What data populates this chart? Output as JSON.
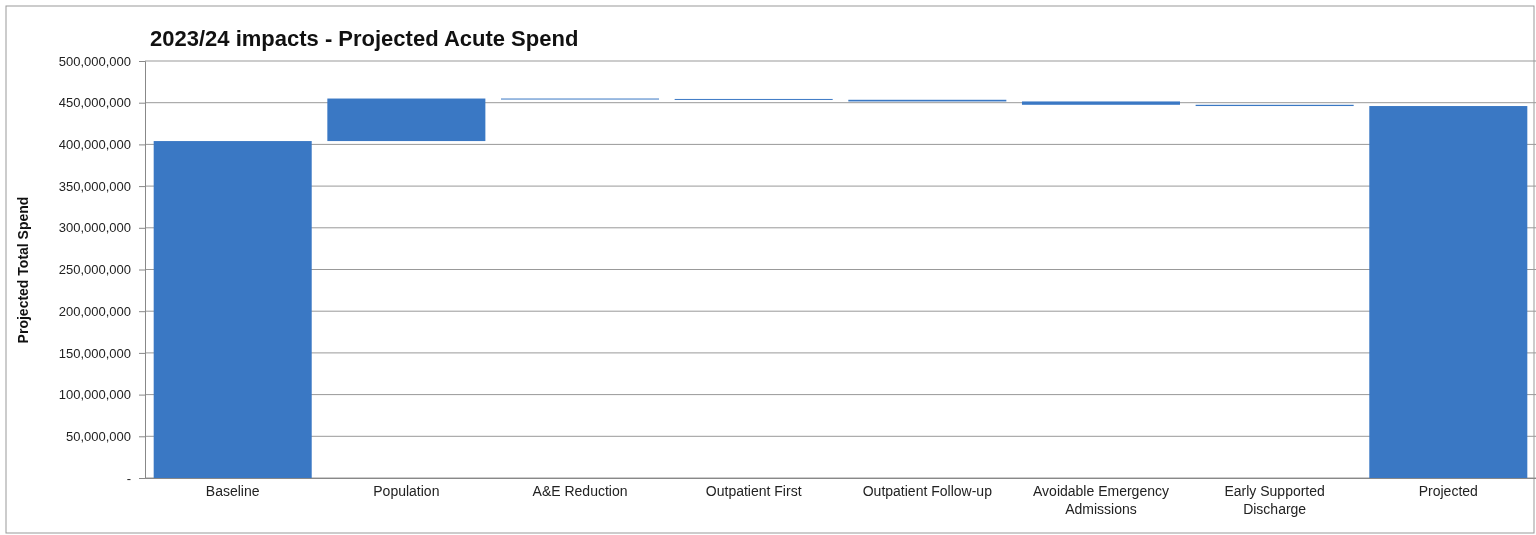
{
  "chart_data": {
    "type": "bar",
    "title": "2023/24 impacts - Projected Acute Spend",
    "ylabel": "Projected Total Spend",
    "categories": [
      "Baseline",
      "Population",
      "A&E Reduction",
      "Outpatient First",
      "Outpatient Follow-up",
      "Avoidable Emergency Admissions",
      "Early Supported Discharge",
      "Projected"
    ],
    "values": [
      404000000,
      51000000,
      -500000,
      -1000000,
      -2000000,
      -4000000,
      -1500000,
      446000000
    ],
    "base": [
      0,
      404000000,
      455000000,
      454500000,
      453500000,
      451500000,
      447500000,
      0
    ],
    "color": "#3a78c4",
    "ylim": [
      0,
      500000000
    ],
    "yticks": [
      {
        "value": 0,
        "label": "-"
      },
      {
        "value": 50000000,
        "label": "50,000,000"
      },
      {
        "value": 100000000,
        "label": "100,000,000"
      },
      {
        "value": 150000000,
        "label": "150,000,000"
      },
      {
        "value": 200000000,
        "label": "200,000,000"
      },
      {
        "value": 250000000,
        "label": "250,000,000"
      },
      {
        "value": 300000000,
        "label": "300,000,000"
      },
      {
        "value": 350000000,
        "label": "350,000,000"
      },
      {
        "value": 400000000,
        "label": "400,000,000"
      },
      {
        "value": 450000000,
        "label": "450,000,000"
      },
      {
        "value": 500000000,
        "label": "500,000,000"
      }
    ],
    "grid": "y"
  }
}
